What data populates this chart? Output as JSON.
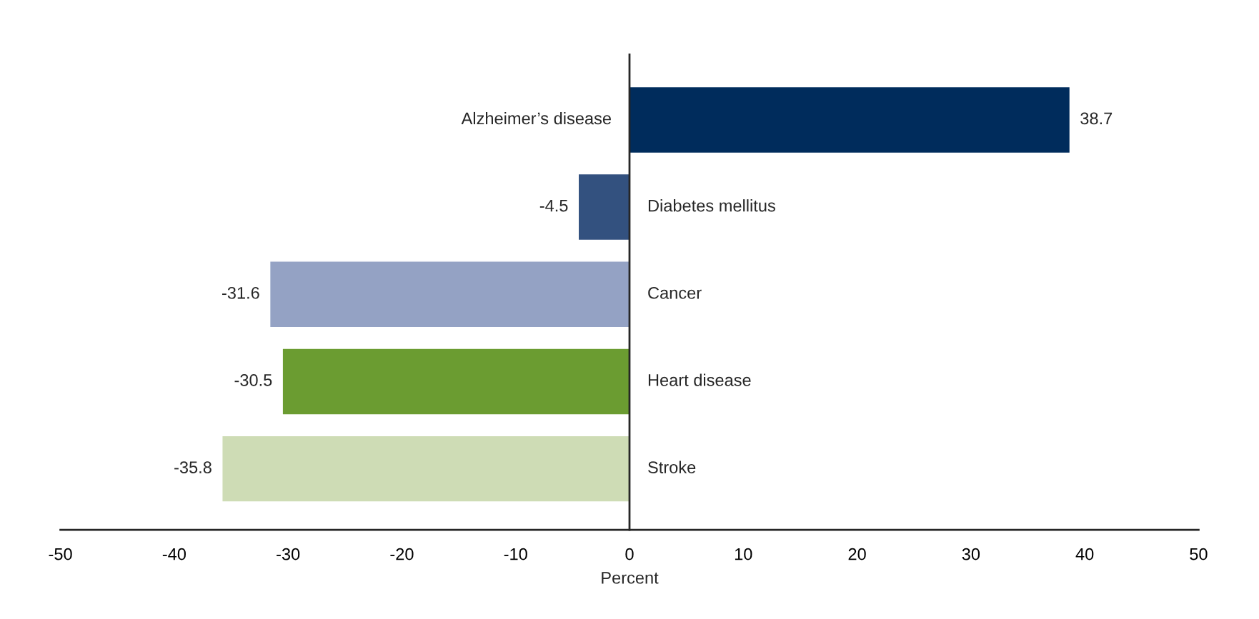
{
  "chart_data": {
    "type": "bar",
    "orientation": "horizontal",
    "xlabel": "Percent",
    "categories": [
      "Alzheimer’s disease",
      "Diabetes mellitus",
      "Cancer",
      "Heart disease",
      "Stroke"
    ],
    "values": [
      38.7,
      -4.5,
      -31.6,
      -30.5,
      -35.8
    ],
    "colors": [
      "#002c5c",
      "#33517f",
      "#94a2c4",
      "#6b9c31",
      "#cedcb5"
    ],
    "xlim": [
      -50,
      50
    ],
    "xticks": [
      -50,
      -40,
      -30,
      -20,
      -10,
      0,
      10,
      20,
      30,
      40,
      50
    ],
    "data_labels": true,
    "grid": false,
    "legend": false
  }
}
